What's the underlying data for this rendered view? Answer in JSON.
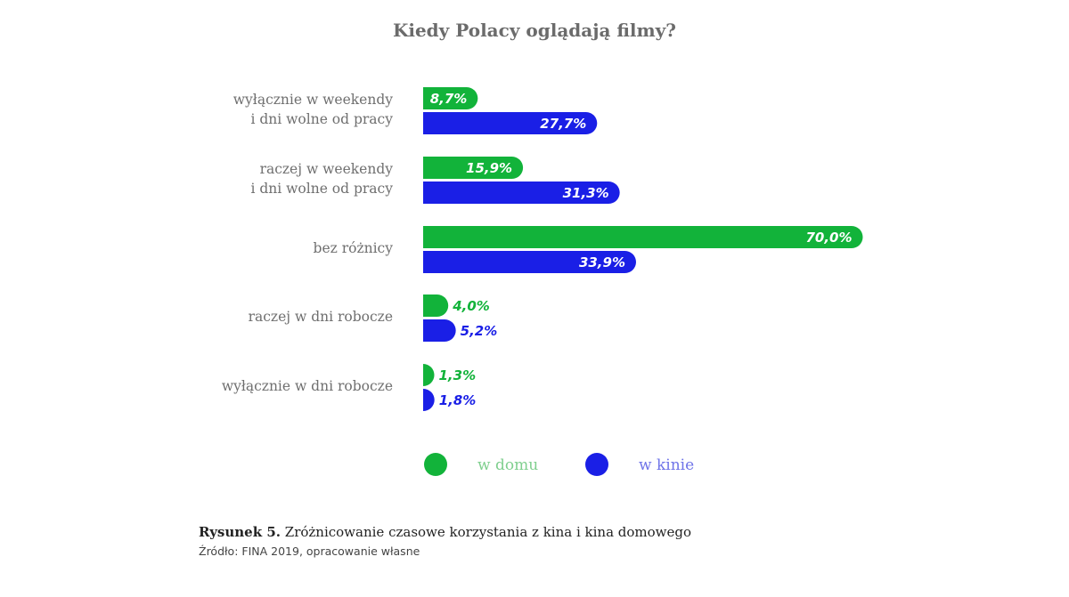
{
  "title": "Kiedy Polacy oglądają filmy?",
  "colors": {
    "green": "#12b33a",
    "blue": "#1a1fe6",
    "green_legend_text": "#7fcf8e",
    "blue_legend_text": "#6f74e8"
  },
  "chart_data": {
    "type": "bar",
    "orientation": "horizontal",
    "title": "Kiedy Polacy oglądają filmy?",
    "categories": [
      [
        "wyłącznie w weekendy",
        "i dni wolne od pracy"
      ],
      [
        "raczej w weekendy",
        "i dni wolne od pracy"
      ],
      [
        "bez różnicy"
      ],
      [
        "raczej w dni robocze"
      ],
      [
        "wyłącznie w dni robocze"
      ]
    ],
    "series": [
      {
        "name": "w domu",
        "values": [
          8.7,
          15.9,
          70.0,
          4.0,
          1.3
        ],
        "labels": [
          "8,7%",
          "15,9%",
          "70,0%",
          "4,0%",
          "1,3%"
        ]
      },
      {
        "name": "w kinie",
        "values": [
          27.7,
          31.3,
          33.9,
          5.2,
          1.8
        ],
        "labels": [
          "27,7%",
          "31,3%",
          "33,9%",
          "5,2%",
          "1,8%"
        ]
      }
    ],
    "unit": "%",
    "legend_position": "bottom",
    "grid": false
  },
  "caption": {
    "prefix": "Rysunek 5.",
    "text": " Zróżnicowanie czasowe korzystania z kina i kina domowego"
  },
  "source": "Źródło: FINA 2019, opracowanie własne"
}
